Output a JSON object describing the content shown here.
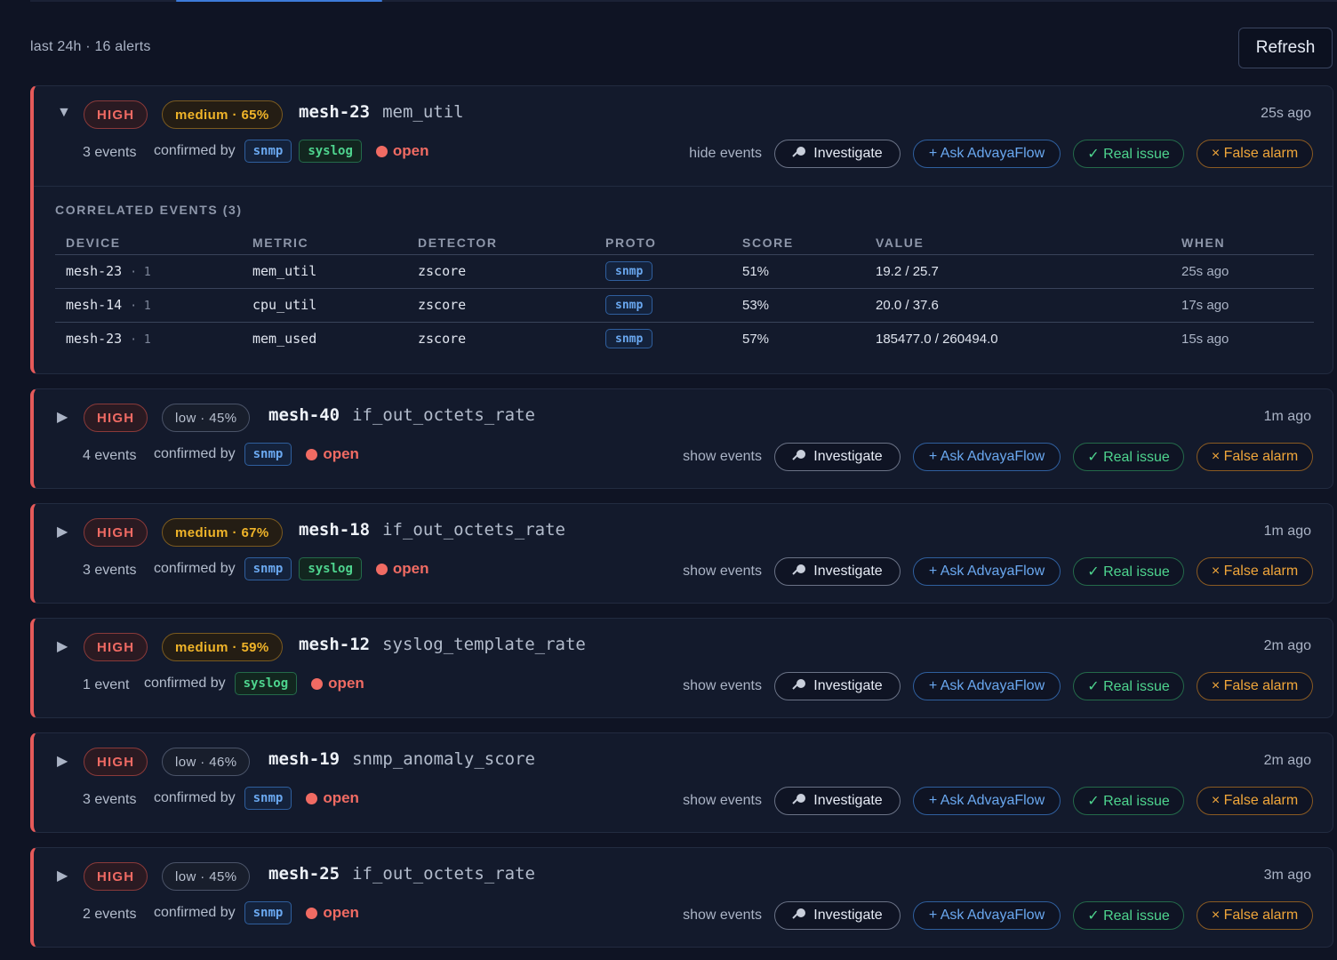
{
  "summary": "last 24h · 16 alerts",
  "refresh_label": "Refresh",
  "labels": {
    "confirmed_by": "confirmed by",
    "investigate": "Investigate",
    "ask": "+ Ask AdvayaFlow",
    "real": "✓ Real issue",
    "false": "× False alarm",
    "events_header": "CORRELATED EVENTS (3)"
  },
  "columns": [
    "DEVICE",
    "METRIC",
    "DETECTOR",
    "PROTO",
    "SCORE",
    "VALUE",
    "WHEN"
  ],
  "alerts": [
    {
      "caret": "▼",
      "severity": "HIGH",
      "confidence": "medium · 65%",
      "conf_level": "medium",
      "device": "mesh-23",
      "metric": "mem_util",
      "ago": "25s ago",
      "events": "3 events",
      "sources": [
        "snmp",
        "syslog"
      ],
      "status": "open",
      "toggle": "hide events"
    },
    {
      "caret": "▶",
      "severity": "HIGH",
      "confidence": "low · 45%",
      "conf_level": "low",
      "device": "mesh-40",
      "metric": "if_out_octets_rate",
      "ago": "1m ago",
      "events": "4 events",
      "sources": [
        "snmp"
      ],
      "status": "open",
      "toggle": "show events"
    },
    {
      "caret": "▶",
      "severity": "HIGH",
      "confidence": "medium · 67%",
      "conf_level": "medium",
      "device": "mesh-18",
      "metric": "if_out_octets_rate",
      "ago": "1m ago",
      "events": "3 events",
      "sources": [
        "snmp",
        "syslog"
      ],
      "status": "open",
      "toggle": "show events"
    },
    {
      "caret": "▶",
      "severity": "HIGH",
      "confidence": "medium · 59%",
      "conf_level": "medium",
      "device": "mesh-12",
      "metric": "syslog_template_rate",
      "ago": "2m ago",
      "events": "1 event",
      "sources": [
        "syslog"
      ],
      "status": "open",
      "toggle": "show events"
    },
    {
      "caret": "▶",
      "severity": "HIGH",
      "confidence": "low · 46%",
      "conf_level": "low",
      "device": "mesh-19",
      "metric": "snmp_anomaly_score",
      "ago": "2m ago",
      "events": "3 events",
      "sources": [
        "snmp"
      ],
      "status": "open",
      "toggle": "show events"
    },
    {
      "caret": "▶",
      "severity": "HIGH",
      "confidence": "low · 45%",
      "conf_level": "low",
      "device": "mesh-25",
      "metric": "if_out_octets_rate",
      "ago": "3m ago",
      "events": "2 events",
      "sources": [
        "snmp"
      ],
      "status": "open",
      "toggle": "show events"
    }
  ],
  "events": [
    {
      "device": "mesh-23",
      "seq": "· 1",
      "metric": "mem_util",
      "detector": "zscore",
      "proto": "snmp",
      "score": "51%",
      "value": "19.2 / 25.7",
      "when": "25s ago"
    },
    {
      "device": "mesh-14",
      "seq": "· 1",
      "metric": "cpu_util",
      "detector": "zscore",
      "proto": "snmp",
      "score": "53%",
      "value": "20.0 / 37.6",
      "when": "17s ago"
    },
    {
      "device": "mesh-23",
      "seq": "· 1",
      "metric": "mem_used",
      "detector": "zscore",
      "proto": "snmp",
      "score": "57%",
      "value": "185477.0 / 260494.0",
      "when": "15s ago"
    }
  ]
}
